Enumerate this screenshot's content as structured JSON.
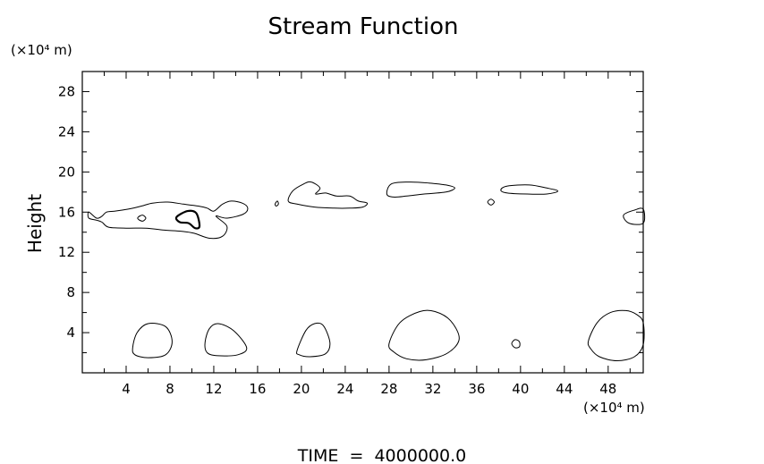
{
  "chart_data": {
    "type": "contour",
    "title": "Stream Function",
    "ylabel": "Height",
    "y_unit_label": "(×10⁴ m)",
    "x_unit_label": "(×10⁴ m)",
    "footer": "TIME  =  4000000.0",
    "xlim": [
      0,
      51.2
    ],
    "ylim": [
      0,
      30
    ],
    "x_ticks": [
      4,
      8,
      12,
      16,
      20,
      24,
      28,
      32,
      36,
      40,
      44,
      48
    ],
    "y_ticks": [
      4,
      8,
      12,
      16,
      20,
      24,
      28
    ],
    "grid": false,
    "contours": [
      {
        "name": "upper-left-band",
        "bold": false,
        "points": [
          [
            0.6,
            16.0
          ],
          [
            1.3,
            15.4
          ],
          [
            1.8,
            15.6
          ],
          [
            2.2,
            16.0
          ],
          [
            3.0,
            16.1
          ],
          [
            4.2,
            16.3
          ],
          [
            5.4,
            16.6
          ],
          [
            6.4,
            16.9
          ],
          [
            7.8,
            17.0
          ],
          [
            9.2,
            16.8
          ],
          [
            10.6,
            16.6
          ],
          [
            11.4,
            16.4
          ],
          [
            12.0,
            16.1
          ],
          [
            12.8,
            16.8
          ],
          [
            13.6,
            17.1
          ],
          [
            14.6,
            16.9
          ],
          [
            15.1,
            16.4
          ],
          [
            14.7,
            15.8
          ],
          [
            13.2,
            15.4
          ],
          [
            12.2,
            15.6
          ],
          [
            13.2,
            14.6
          ],
          [
            12.8,
            13.6
          ],
          [
            11.6,
            13.4
          ],
          [
            10.2,
            13.9
          ],
          [
            9.0,
            14.1
          ],
          [
            7.6,
            14.2
          ],
          [
            5.8,
            14.4
          ],
          [
            4.0,
            14.4
          ],
          [
            2.4,
            14.5
          ],
          [
            1.8,
            15.0
          ],
          [
            1.3,
            15.2
          ],
          [
            0.6,
            15.4
          ]
        ]
      },
      {
        "name": "inner-left-small",
        "bold": false,
        "points": [
          [
            5.1,
            15.5
          ],
          [
            5.5,
            15.7
          ],
          [
            5.8,
            15.4
          ],
          [
            5.5,
            15.1
          ],
          [
            5.1,
            15.3
          ]
        ]
      },
      {
        "name": "inner-left-bold",
        "bold": true,
        "points": [
          [
            8.6,
            15.5
          ],
          [
            9.6,
            16.1
          ],
          [
            10.4,
            15.9
          ],
          [
            10.7,
            14.6
          ],
          [
            10.3,
            14.4
          ],
          [
            9.7,
            14.9
          ],
          [
            8.9,
            15.0
          ]
        ]
      },
      {
        "name": "tiny-18",
        "bold": false,
        "points": [
          [
            17.6,
            16.8
          ],
          [
            17.8,
            17.1
          ],
          [
            17.9,
            16.8
          ],
          [
            17.7,
            16.6
          ]
        ]
      },
      {
        "name": "band-20-26",
        "bold": false,
        "points": [
          [
            18.8,
            17.1
          ],
          [
            19.2,
            18.1
          ],
          [
            20.2,
            18.8
          ],
          [
            20.9,
            19.0
          ],
          [
            21.7,
            18.4
          ],
          [
            21.3,
            17.8
          ],
          [
            22.2,
            17.9
          ],
          [
            23.2,
            17.6
          ],
          [
            24.4,
            17.6
          ],
          [
            25.2,
            17.1
          ],
          [
            26.0,
            16.9
          ],
          [
            25.6,
            16.5
          ],
          [
            24.4,
            16.4
          ],
          [
            23.0,
            16.4
          ],
          [
            21.2,
            16.5
          ],
          [
            19.6,
            16.8
          ]
        ]
      },
      {
        "name": "band-28-34",
        "bold": false,
        "points": [
          [
            27.8,
            17.8
          ],
          [
            28.2,
            18.8
          ],
          [
            29.8,
            19.0
          ],
          [
            31.6,
            18.9
          ],
          [
            33.2,
            18.7
          ],
          [
            34.0,
            18.4
          ],
          [
            33.2,
            18.0
          ],
          [
            31.2,
            17.8
          ],
          [
            29.6,
            17.6
          ],
          [
            28.4,
            17.5
          ]
        ]
      },
      {
        "name": "tiny-37",
        "bold": false,
        "points": [
          [
            37.0,
            17.0
          ],
          [
            37.3,
            17.3
          ],
          [
            37.6,
            17.0
          ],
          [
            37.3,
            16.7
          ]
        ]
      },
      {
        "name": "band-38-44",
        "bold": false,
        "points": [
          [
            38.2,
            18.2
          ],
          [
            38.8,
            18.6
          ],
          [
            40.8,
            18.7
          ],
          [
            42.4,
            18.4
          ],
          [
            43.4,
            18.1
          ],
          [
            42.4,
            17.8
          ],
          [
            40.6,
            17.8
          ],
          [
            38.8,
            17.9
          ]
        ]
      },
      {
        "name": "right-edge-16",
        "bold": false,
        "points": [
          [
            51.2,
            16.3
          ],
          [
            50.4,
            16.2
          ],
          [
            49.4,
            15.7
          ],
          [
            49.9,
            14.9
          ],
          [
            51.2,
            14.9
          ]
        ]
      },
      {
        "name": "bottom-6",
        "bold": false,
        "points": [
          [
            4.6,
            2.5
          ],
          [
            5.0,
            4.0
          ],
          [
            6.0,
            4.9
          ],
          [
            7.6,
            4.6
          ],
          [
            8.2,
            3.1
          ],
          [
            7.6,
            1.8
          ],
          [
            6.0,
            1.5
          ],
          [
            4.8,
            1.8
          ]
        ]
      },
      {
        "name": "bottom-13",
        "bold": false,
        "points": [
          [
            11.2,
            3.0
          ],
          [
            11.6,
            4.4
          ],
          [
            12.4,
            4.9
          ],
          [
            13.8,
            4.2
          ],
          [
            15.0,
            2.5
          ],
          [
            14.2,
            1.8
          ],
          [
            12.4,
            1.7
          ],
          [
            11.4,
            2.0
          ]
        ]
      },
      {
        "name": "bottom-21",
        "bold": false,
        "points": [
          [
            19.6,
            2.2
          ],
          [
            20.4,
            4.2
          ],
          [
            21.2,
            4.9
          ],
          [
            22.0,
            4.7
          ],
          [
            22.6,
            3.0
          ],
          [
            22.2,
            1.9
          ],
          [
            20.8,
            1.6
          ],
          [
            19.8,
            1.8
          ]
        ]
      },
      {
        "name": "bottom-31",
        "bold": false,
        "points": [
          [
            28.0,
            2.9
          ],
          [
            29.0,
            5.0
          ],
          [
            30.8,
            6.1
          ],
          [
            32.2,
            6.1
          ],
          [
            33.6,
            5.2
          ],
          [
            34.4,
            3.4
          ],
          [
            33.4,
            2.0
          ],
          [
            31.4,
            1.3
          ],
          [
            29.6,
            1.4
          ],
          [
            28.4,
            2.1
          ]
        ]
      },
      {
        "name": "tiny-39",
        "bold": false,
        "points": [
          [
            39.2,
            2.9
          ],
          [
            39.5,
            3.3
          ],
          [
            39.9,
            3.1
          ],
          [
            39.9,
            2.6
          ],
          [
            39.5,
            2.5
          ]
        ]
      },
      {
        "name": "bottom-48",
        "bold": false,
        "points": [
          [
            46.2,
            3.2
          ],
          [
            47.0,
            5.0
          ],
          [
            48.2,
            6.0
          ],
          [
            49.6,
            6.2
          ],
          [
            50.6,
            5.8
          ],
          [
            51.2,
            5.0
          ],
          [
            51.2,
            2.8
          ],
          [
            50.4,
            1.6
          ],
          [
            48.8,
            1.2
          ],
          [
            47.2,
            1.6
          ],
          [
            46.4,
            2.4
          ]
        ]
      }
    ]
  }
}
